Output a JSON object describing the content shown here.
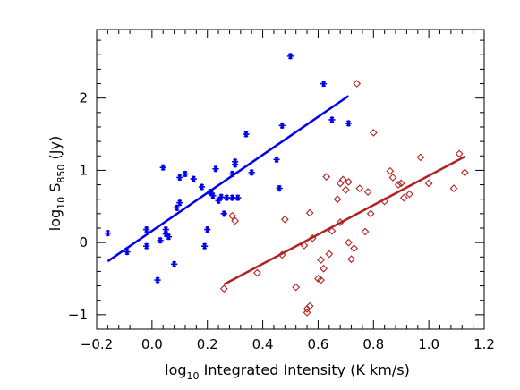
{
  "chart_data": {
    "type": "scatter",
    "xlabel": "log10 Integrated Intensity (K km/s)",
    "ylabel": "log10 S850 (Jy)",
    "xlabel_parts": {
      "prefix": "log",
      "sub": "10",
      "rest": " Integrated Intensity (K km/s)"
    },
    "ylabel_parts": {
      "prefix": "log",
      "sub1": "10",
      "mid": " S",
      "sub2": "850",
      "rest": " (Jy)"
    },
    "xlim": [
      -0.2,
      1.2
    ],
    "ylim": [
      -1.2,
      2.95
    ],
    "x_ticks": [
      -0.2,
      0.0,
      0.2,
      0.4,
      0.6,
      0.8,
      1.0,
      1.2
    ],
    "x_tick_labels": [
      "−0.2",
      "0.0",
      "0.2",
      "0.4",
      "0.6",
      "0.8",
      "1.0",
      "1.2"
    ],
    "y_ticks": [
      -1,
      0,
      1,
      2
    ],
    "y_tick_labels": [
      "−1",
      "0",
      "1",
      "2"
    ],
    "series": [
      {
        "marker": "asterisk",
        "color": "#0000ee",
        "points": [
          [
            -0.16,
            0.13
          ],
          [
            -0.09,
            -0.13
          ],
          [
            -0.02,
            0.18
          ],
          [
            -0.02,
            -0.05
          ],
          [
            0.02,
            -0.52
          ],
          [
            0.03,
            0.03
          ],
          [
            0.04,
            1.04
          ],
          [
            0.05,
            0.12
          ],
          [
            0.05,
            0.18
          ],
          [
            0.06,
            0.08
          ],
          [
            0.08,
            -0.3
          ],
          [
            0.09,
            0.48
          ],
          [
            0.1,
            0.55
          ],
          [
            0.1,
            0.9
          ],
          [
            0.12,
            0.95
          ],
          [
            0.15,
            0.88
          ],
          [
            0.18,
            0.77
          ],
          [
            0.19,
            -0.05
          ],
          [
            0.2,
            0.18
          ],
          [
            0.21,
            0.7
          ],
          [
            0.22,
            0.65
          ],
          [
            0.23,
            1.02
          ],
          [
            0.24,
            0.58
          ],
          [
            0.25,
            0.63
          ],
          [
            0.26,
            0.4
          ],
          [
            0.27,
            0.62
          ],
          [
            0.29,
            0.95
          ],
          [
            0.29,
            0.62
          ],
          [
            0.3,
            1.08
          ],
          [
            0.3,
            1.12
          ],
          [
            0.31,
            0.62
          ],
          [
            0.34,
            1.5
          ],
          [
            0.36,
            0.97
          ],
          [
            0.45,
            1.15
          ],
          [
            0.46,
            0.75
          ],
          [
            0.47,
            1.62
          ],
          [
            0.5,
            2.58
          ],
          [
            0.62,
            2.2
          ],
          [
            0.65,
            1.7
          ],
          [
            0.71,
            1.65
          ]
        ],
        "fit": {
          "x": [
            -0.16,
            0.71
          ],
          "y": [
            -0.26,
            2.03
          ]
        }
      },
      {
        "marker": "diamond",
        "color": "#b22222",
        "points": [
          [
            0.26,
            -0.64
          ],
          [
            0.29,
            0.37
          ],
          [
            0.3,
            0.3
          ],
          [
            0.38,
            -0.42
          ],
          [
            0.47,
            -0.17
          ],
          [
            0.48,
            0.32
          ],
          [
            0.52,
            -0.62
          ],
          [
            0.55,
            -0.04
          ],
          [
            0.56,
            -0.97
          ],
          [
            0.56,
            -0.92
          ],
          [
            0.57,
            -0.88
          ],
          [
            0.57,
            0.41
          ],
          [
            0.58,
            0.06
          ],
          [
            0.6,
            -0.5
          ],
          [
            0.61,
            -0.24
          ],
          [
            0.61,
            -0.52
          ],
          [
            0.62,
            -0.36
          ],
          [
            0.63,
            0.91
          ],
          [
            0.64,
            -0.16
          ],
          [
            0.65,
            0.16
          ],
          [
            0.67,
            0.6
          ],
          [
            0.68,
            0.28
          ],
          [
            0.68,
            0.82
          ],
          [
            0.69,
            0.87
          ],
          [
            0.7,
            0.73
          ],
          [
            0.71,
            0.84
          ],
          [
            0.71,
            0.0
          ],
          [
            0.72,
            -0.23
          ],
          [
            0.73,
            -0.08
          ],
          [
            0.74,
            2.2
          ],
          [
            0.75,
            0.75
          ],
          [
            0.77,
            0.15
          ],
          [
            0.78,
            0.7
          ],
          [
            0.79,
            0.4
          ],
          [
            0.8,
            1.52
          ],
          [
            0.84,
            0.57
          ],
          [
            0.86,
            0.99
          ],
          [
            0.87,
            0.9
          ],
          [
            0.89,
            0.8
          ],
          [
            0.9,
            0.82
          ],
          [
            0.91,
            0.62
          ],
          [
            0.93,
            0.67
          ],
          [
            0.97,
            1.18
          ],
          [
            1.0,
            0.82
          ],
          [
            1.09,
            0.75
          ],
          [
            1.11,
            1.23
          ],
          [
            1.13,
            0.97
          ]
        ],
        "fit": {
          "x": [
            0.26,
            1.13
          ],
          "y": [
            -0.58,
            1.19
          ]
        }
      }
    ]
  }
}
